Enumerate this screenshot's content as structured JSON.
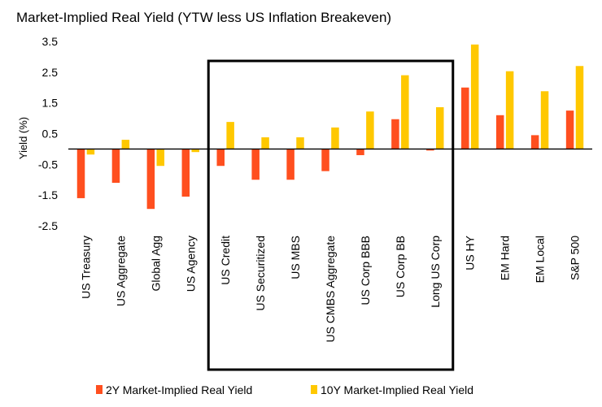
{
  "chart_data": {
    "type": "bar",
    "title": "Market-Implied Real Yield (YTW less US Inflation Breakeven)",
    "ylabel": "Yield (%)",
    "xlabel": "",
    "ylim": [
      -2.5,
      3.5
    ],
    "yticks": [
      3.5,
      2.5,
      1.5,
      0.5,
      -0.5,
      -1.5,
      -2.5
    ],
    "ytick_labels": [
      "3.5",
      "2.5",
      "1.5",
      "0.5",
      "-0.5",
      "-1.5",
      "-2.5"
    ],
    "grid": false,
    "legend_position": "bottom",
    "categories": [
      "US Treasury",
      "US Aggregate",
      "Global Agg",
      "US Agency",
      "US Credit",
      "US Securitized",
      "US MBS",
      "US CMBS Aggregate",
      "US Corp BBB",
      "US Corp BB",
      "Long US Corp",
      "US HY",
      "EM Hard",
      "EM Local",
      "S&P 500"
    ],
    "highlight_box": {
      "from_category": "US Credit",
      "to_category": "Long US Corp"
    },
    "series": [
      {
        "name": "2Y Market-Implied Real Yield",
        "color": "#ff4f1f",
        "values": [
          -1.6,
          -1.1,
          -1.95,
          -1.55,
          -0.55,
          -1.0,
          -1.0,
          -0.72,
          -0.2,
          0.97,
          -0.05,
          2.0,
          1.1,
          0.45,
          1.25
        ]
      },
      {
        "name": "10Y Market-Implied Real Yield",
        "color": "#ffc800",
        "values": [
          -0.18,
          0.3,
          -0.55,
          -0.1,
          0.88,
          0.38,
          0.38,
          0.7,
          1.22,
          2.4,
          1.36,
          3.4,
          2.53,
          1.88,
          2.7
        ]
      }
    ]
  }
}
